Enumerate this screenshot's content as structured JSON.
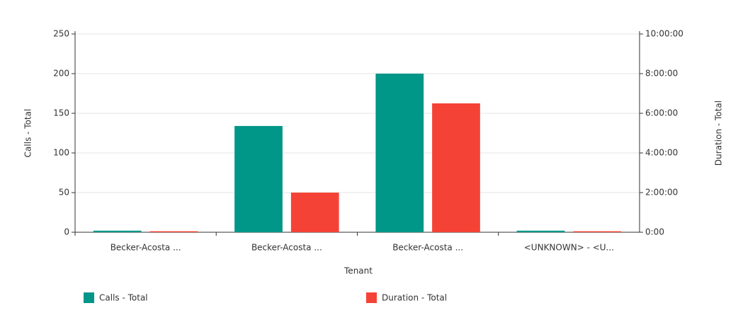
{
  "chart_data": {
    "type": "bar",
    "categories": [
      "Becker-Acosta ...",
      "Becker-Acosta ...",
      "Becker-Acosta ...",
      "<UNKNOWN> - <U..."
    ],
    "series": [
      {
        "name": "Calls - Total",
        "color": "#009688",
        "values": [
          2,
          134,
          200,
          2
        ]
      },
      {
        "name": "Duration - Total",
        "color": "#f44336",
        "axis": "y2",
        "values": [
          0.05,
          2.0,
          6.5,
          0.05
        ]
      }
    ],
    "xlabel": "Tenant",
    "ylabel": "Calls - Total",
    "y2label": "Duration - Total",
    "ylim": [
      0,
      250
    ],
    "yticks": [
      0,
      50,
      100,
      150,
      200,
      250
    ],
    "y2lim": [
      0,
      10
    ],
    "y2ticks": [
      {
        "value": 0,
        "label": "0:00"
      },
      {
        "value": 2,
        "label": "2:00:00"
      },
      {
        "value": 4,
        "label": "4:00:00"
      },
      {
        "value": 6,
        "label": "6:00:00"
      },
      {
        "value": 8,
        "label": "8:00:00"
      },
      {
        "value": 10,
        "label": "10:00:00"
      }
    ],
    "grid": true
  }
}
